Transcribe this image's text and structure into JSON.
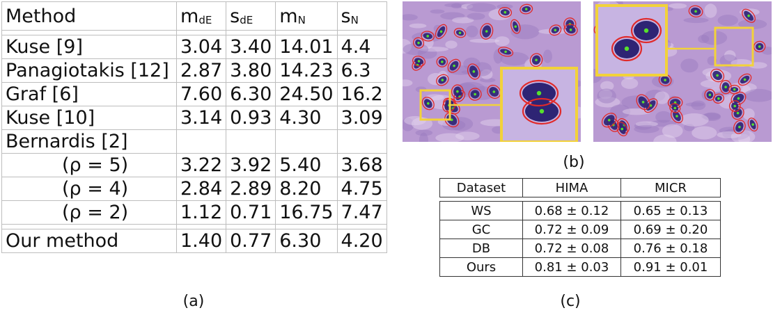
{
  "table_a": {
    "headers": {
      "method": "Method",
      "m_de": {
        "base": "m",
        "sub": "dE"
      },
      "s_de": {
        "base": "s",
        "sub": "dE"
      },
      "m_n": {
        "base": "m",
        "sub": "N"
      },
      "s_n": {
        "base": "s",
        "sub": "N"
      }
    },
    "rows": [
      {
        "method": "Kuse [9]",
        "m_de": "3.04",
        "s_de": "3.40",
        "m_n": "14.01",
        "s_n": "4.4"
      },
      {
        "method": "Panagiotakis [12]",
        "m_de": "2.87",
        "s_de": "3.80",
        "m_n": "14.23",
        "s_n": "6.3"
      },
      {
        "method": "Graf [6]",
        "m_de": "7.60",
        "s_de": "6.30",
        "m_n": "24.50",
        "s_n": "16.2"
      },
      {
        "method": "Kuse [10]",
        "m_de": "3.14",
        "s_de": "0.93",
        "m_n": "4.30",
        "s_n": "3.09"
      },
      {
        "method": "Bernardis [2]",
        "m_de": "",
        "s_de": "",
        "m_n": "",
        "s_n": ""
      },
      {
        "method": "(ρ = 5)",
        "m_de": "3.22",
        "s_de": "3.92",
        "m_n": "5.40",
        "s_n": "3.68"
      },
      {
        "method": "(ρ = 4)",
        "m_de": "2.84",
        "s_de": "2.89",
        "m_n": "8.20",
        "s_n": "4.75"
      },
      {
        "method": "(ρ = 2)",
        "m_de": "1.12",
        "s_de": "0.71",
        "m_n": "16.75",
        "s_n": "7.47"
      }
    ],
    "ours": {
      "method": "Our method",
      "m_de": "1.40",
      "s_de": "0.77",
      "m_n": "6.30",
      "s_n": "4.20"
    }
  },
  "table_c": {
    "headers": [
      "Dataset",
      "HIMA",
      "MICR"
    ],
    "rows": [
      [
        "WS",
        "0.68 ± 0.12",
        "0.65 ± 0.13"
      ],
      [
        "GC",
        "0.72 ± 0.09",
        "0.69 ± 0.20"
      ],
      [
        "DB",
        "0.72 ± 0.08",
        "0.76 ± 0.18"
      ],
      [
        "Ours",
        "0.81 ± 0.03",
        "0.91 ± 0.01"
      ]
    ]
  },
  "captions": {
    "a": "(a)",
    "b": "(b)",
    "c": "(c)"
  },
  "colors": {
    "tissue": "#b99ad2",
    "nucleus": "#2e2474",
    "contour": "#e02a2a",
    "centroid": "#56e02c",
    "highlight": "#f2d23a"
  }
}
